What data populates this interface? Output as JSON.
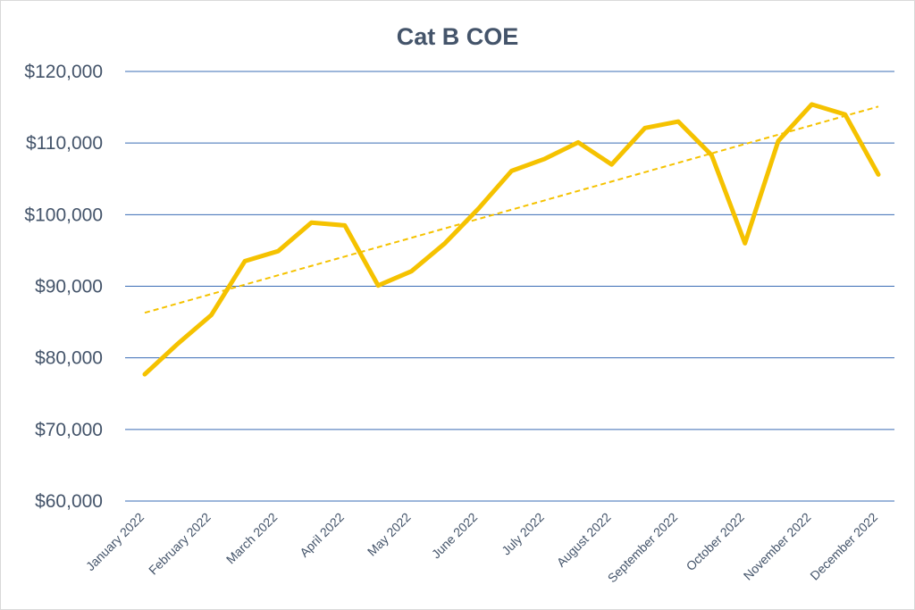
{
  "chart_data": {
    "type": "line",
    "title": "Cat B COE",
    "xlabel": "",
    "ylabel": "",
    "ylim": [
      60000,
      120000
    ],
    "yticks": [
      60000,
      70000,
      80000,
      90000,
      100000,
      110000,
      120000
    ],
    "ytick_labels": [
      "$60,000",
      "$70,000",
      "$80,000",
      "$90,000",
      "$100,000",
      "$110,000",
      "$120,000"
    ],
    "xtick_labels": [
      "January 2022",
      "February 2022",
      "March 2022",
      "April 2022",
      "May 2022",
      "June 2022",
      "July 2022",
      "August 2022",
      "September 2022",
      "October 2022",
      "November 2022",
      "December 2022"
    ],
    "grid": true,
    "series": [
      {
        "name": "Cat B COE",
        "color": "#f5c200",
        "values": [
          77700,
          82000,
          86000,
          93500,
          94900,
          98900,
          98500,
          90100,
          92100,
          96000,
          100800,
          106100,
          107800,
          110100,
          107000,
          112100,
          113000,
          108300,
          96000,
          110300,
          115400,
          114000,
          105600
        ]
      },
      {
        "name": "Trend",
        "style": "dashed",
        "color": "#f5c200",
        "values": [
          86300,
          115100
        ]
      }
    ]
  }
}
